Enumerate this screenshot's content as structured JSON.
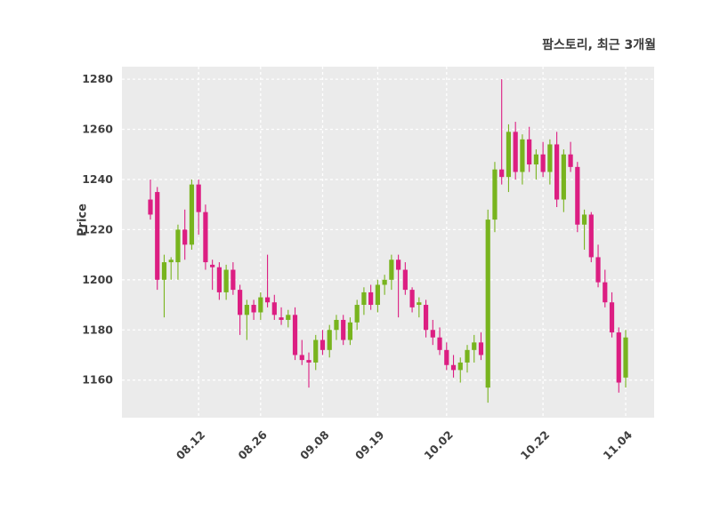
{
  "title": "팜스토리, 최근 3개월",
  "ylabel": "Price",
  "chart_data": {
    "type": "candlestick",
    "title": "팜스토리, 최근 3개월",
    "ylabel": "Price",
    "xlabel": "",
    "ylim": [
      1145,
      1285
    ],
    "y_ticks": [
      1160,
      1180,
      1200,
      1220,
      1240,
      1260,
      1280
    ],
    "x_tick_indices": [
      7,
      16,
      25,
      33,
      43,
      57,
      69
    ],
    "x_tick_labels": [
      "08.12",
      "08.26",
      "09.08",
      "09.19",
      "10.02",
      "10.22",
      "11.04"
    ],
    "grid": true,
    "plot_bg_color": "#ebebeb",
    "grid_color": "#ffffff",
    "up_color": "#78b41e",
    "down_color": "#dc1e82",
    "tick_label_color": "#3f3f3f",
    "candles_format": "[open, high, low, close]",
    "candles": [
      [
        1232,
        1240,
        1224,
        1226
      ],
      [
        1235,
        1237,
        1196,
        1200
      ],
      [
        1200,
        1210,
        1185,
        1207
      ],
      [
        1207,
        1209,
        1200,
        1208
      ],
      [
        1207,
        1222,
        1200,
        1220
      ],
      [
        1220,
        1228,
        1208,
        1214
      ],
      [
        1214,
        1240,
        1212,
        1238
      ],
      [
        1238,
        1240,
        1218,
        1227
      ],
      [
        1227,
        1230,
        1204,
        1207
      ],
      [
        1206,
        1208,
        1196,
        1205
      ],
      [
        1205,
        1207,
        1192,
        1195
      ],
      [
        1195,
        1206,
        1192,
        1204
      ],
      [
        1204,
        1207,
        1194,
        1196
      ],
      [
        1196,
        1198,
        1178,
        1186
      ],
      [
        1186,
        1192,
        1176,
        1190
      ],
      [
        1190,
        1192,
        1184,
        1187
      ],
      [
        1187,
        1195,
        1184,
        1193
      ],
      [
        1193,
        1210,
        1189,
        1191
      ],
      [
        1191,
        1194,
        1184,
        1186
      ],
      [
        1185,
        1189,
        1182,
        1184
      ],
      [
        1184,
        1188,
        1181,
        1186
      ],
      [
        1186,
        1189,
        1168,
        1170
      ],
      [
        1170,
        1176,
        1166,
        1168
      ],
      [
        1168,
        1171,
        1157,
        1167
      ],
      [
        1167,
        1178,
        1164,
        1176
      ],
      [
        1176,
        1180,
        1170,
        1172
      ],
      [
        1172,
        1182,
        1169,
        1180
      ],
      [
        1180,
        1186,
        1176,
        1184
      ],
      [
        1184,
        1186,
        1174,
        1176
      ],
      [
        1176,
        1185,
        1174,
        1183
      ],
      [
        1183,
        1192,
        1180,
        1190
      ],
      [
        1190,
        1197,
        1186,
        1195
      ],
      [
        1195,
        1198,
        1188,
        1190
      ],
      [
        1190,
        1200,
        1187,
        1198
      ],
      [
        1198,
        1202,
        1194,
        1200
      ],
      [
        1200,
        1210,
        1196,
        1208
      ],
      [
        1208,
        1210,
        1185,
        1204
      ],
      [
        1204,
        1207,
        1194,
        1196
      ],
      [
        1196,
        1197,
        1187,
        1189
      ],
      [
        1190,
        1193,
        1185,
        1191
      ],
      [
        1190,
        1192,
        1177,
        1180
      ],
      [
        1180,
        1184,
        1174,
        1177
      ],
      [
        1177,
        1181,
        1170,
        1172
      ],
      [
        1172,
        1175,
        1164,
        1166
      ],
      [
        1166,
        1170,
        1161,
        1164
      ],
      [
        1164,
        1169,
        1159,
        1167
      ],
      [
        1167,
        1174,
        1163,
        1172
      ],
      [
        1172,
        1178,
        1167,
        1175
      ],
      [
        1175,
        1179,
        1168,
        1170
      ],
      [
        1157,
        1228,
        1151,
        1224
      ],
      [
        1224,
        1247,
        1219,
        1244
      ],
      [
        1244,
        1280,
        1238,
        1241
      ],
      [
        1241,
        1262,
        1235,
        1259
      ],
      [
        1259,
        1263,
        1240,
        1243
      ],
      [
        1243,
        1258,
        1238,
        1256
      ],
      [
        1256,
        1261,
        1243,
        1246
      ],
      [
        1246,
        1252,
        1240,
        1250
      ],
      [
        1250,
        1255,
        1241,
        1243
      ],
      [
        1243,
        1256,
        1238,
        1254
      ],
      [
        1254,
        1259,
        1229,
        1232
      ],
      [
        1232,
        1252,
        1227,
        1250
      ],
      [
        1250,
        1255,
        1243,
        1245
      ],
      [
        1245,
        1247,
        1219,
        1222
      ],
      [
        1222,
        1228,
        1212,
        1226
      ],
      [
        1226,
        1227,
        1207,
        1209
      ],
      [
        1209,
        1214,
        1197,
        1199
      ],
      [
        1199,
        1204,
        1189,
        1191
      ],
      [
        1191,
        1195,
        1177,
        1179
      ],
      [
        1179,
        1181,
        1155,
        1159
      ],
      [
        1161,
        1180,
        1157,
        1177
      ]
    ]
  }
}
